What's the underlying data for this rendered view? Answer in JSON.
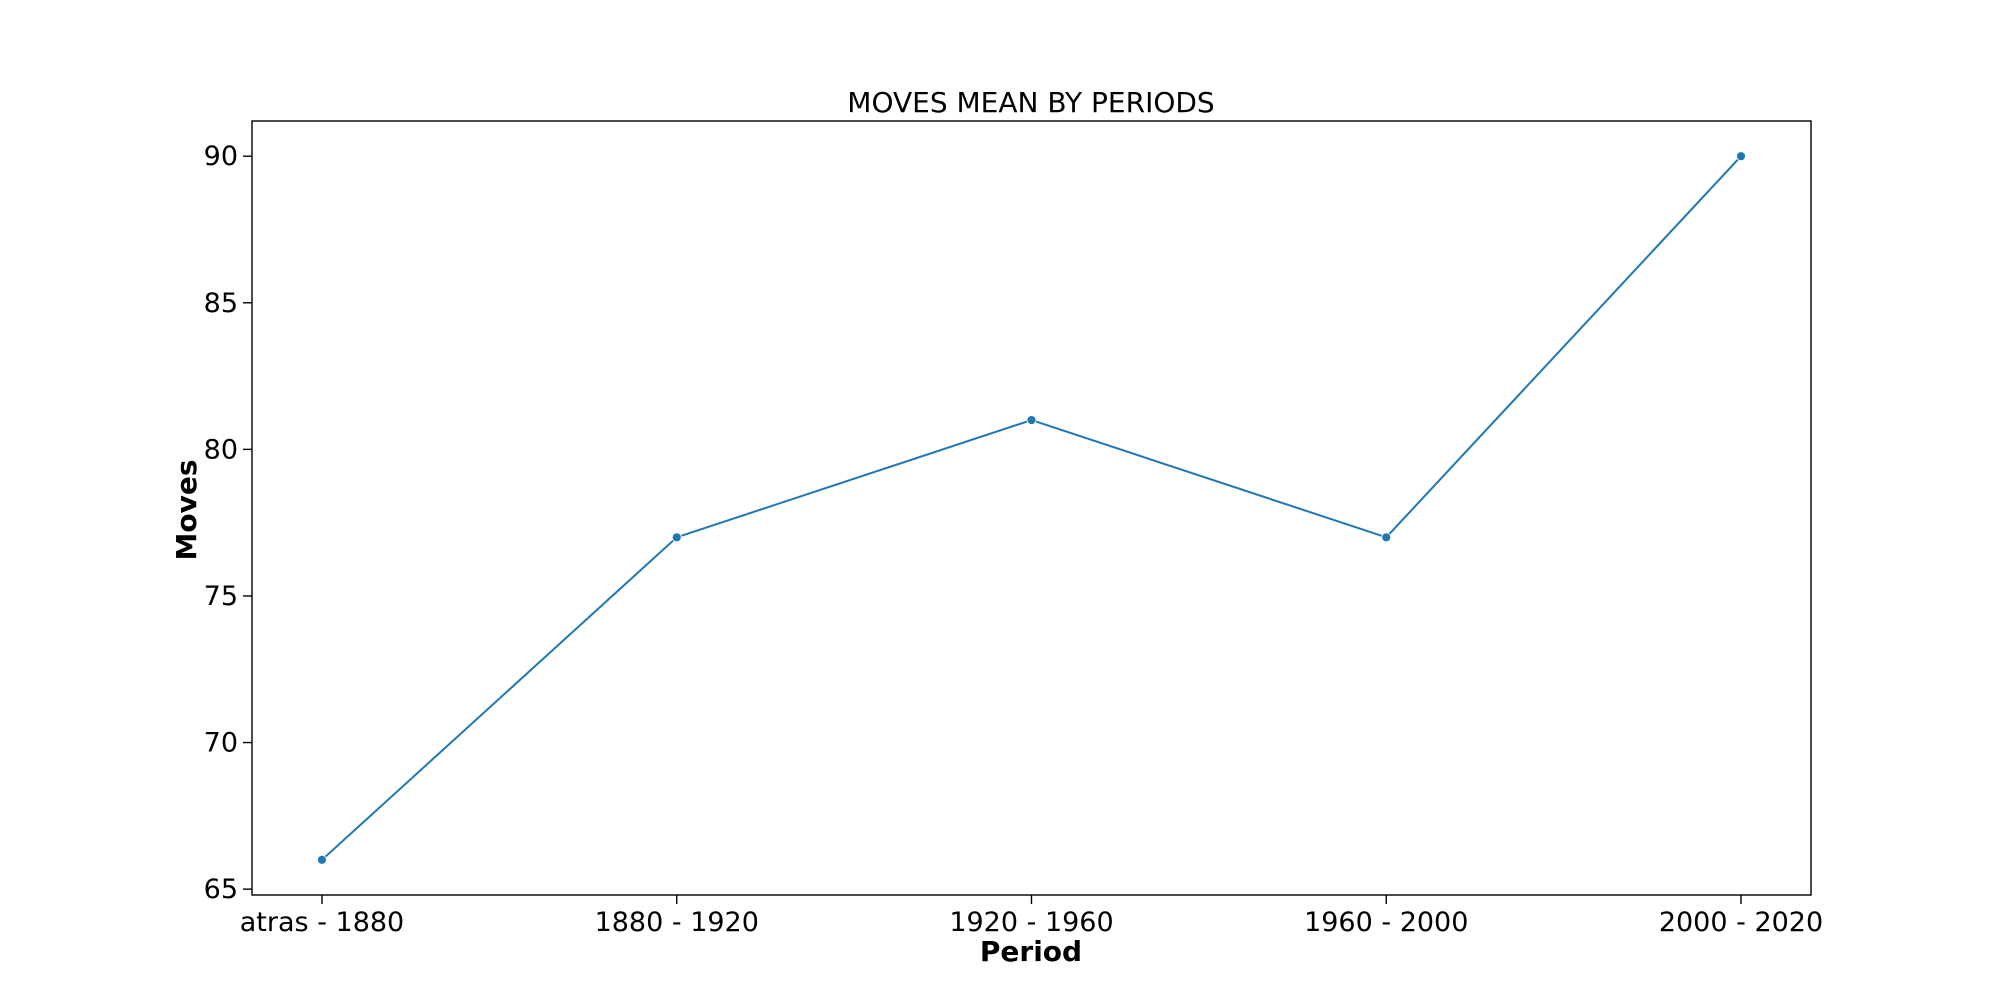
{
  "chart_data": {
    "type": "line",
    "title": "MOVES MEAN BY PERIODS",
    "xlabel": "Period",
    "ylabel": "Moves",
    "categories": [
      "atras - 1880",
      "1880 - 1920",
      "1920 - 1960",
      "1960 - 2000",
      "2000 - 2020"
    ],
    "series": [
      {
        "values": [
          66,
          77,
          81,
          77,
          90
        ],
        "color": "#1f77b4",
        "marker": "circle"
      }
    ],
    "ylim": [
      64.8,
      91.2
    ],
    "yticks": [
      65,
      70,
      75,
      80,
      85,
      90
    ],
    "grid": false,
    "legend": false
  }
}
